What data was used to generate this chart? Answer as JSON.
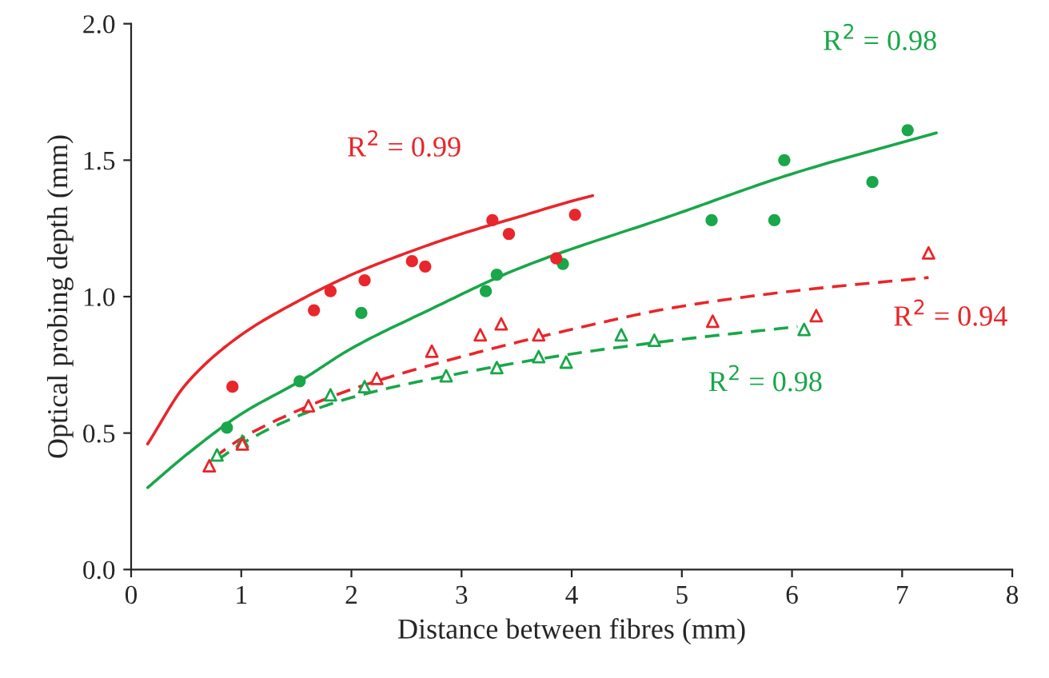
{
  "chart_data": {
    "type": "scatter",
    "xlabel": "Distance between fibres (mm)",
    "ylabel": "Optical probing depth (mm)",
    "xlim": [
      0,
      8
    ],
    "xticks": [
      0,
      1,
      2,
      3,
      4,
      5,
      6,
      7,
      8
    ],
    "ylim": [
      0,
      2.0
    ],
    "yticks": [
      {
        "value": 0,
        "label": "0.0"
      },
      {
        "value": 0.5,
        "label": "0.5"
      },
      {
        "value": 1.0,
        "label": "1.0"
      },
      {
        "value": 1.5,
        "label": "1.5"
      },
      {
        "value": 2.0,
        "label": "2.0"
      }
    ],
    "grid": false,
    "legend": false,
    "series": [
      {
        "marker": "circle",
        "color": "#e8262b",
        "x": [
          0.92,
          1.66,
          1.81,
          2.12,
          2.55,
          2.67,
          3.28,
          3.43,
          3.86,
          4.03
        ],
        "values": [
          0.67,
          0.95,
          1.02,
          1.06,
          1.13,
          1.11,
          1.28,
          1.23,
          1.14,
          1.3
        ]
      },
      {
        "marker": "circle",
        "color": "#1aa64a",
        "x": [
          0.87,
          1.53,
          2.09,
          3.22,
          3.32,
          3.92,
          5.27,
          5.84,
          5.93,
          6.73,
          7.05
        ],
        "values": [
          0.52,
          0.69,
          0.94,
          1.02,
          1.08,
          1.12,
          1.28,
          1.28,
          1.5,
          1.42,
          1.61
        ]
      },
      {
        "marker": "triangle",
        "color": "#e8262b",
        "x": [
          0.71,
          1.01,
          1.61,
          2.23,
          2.73,
          3.17,
          3.36,
          3.7,
          5.28,
          6.22,
          7.24
        ],
        "values": [
          0.38,
          0.46,
          0.6,
          0.7,
          0.8,
          0.86,
          0.9,
          0.86,
          0.91,
          0.93,
          1.16
        ]
      },
      {
        "marker": "triangle",
        "color": "#1aa64a",
        "x": [
          0.78,
          1.01,
          1.81,
          2.12,
          2.86,
          3.32,
          3.7,
          3.95,
          4.45,
          4.75,
          6.11
        ],
        "values": [
          0.42,
          0.47,
          0.64,
          0.67,
          0.71,
          0.74,
          0.78,
          0.76,
          0.86,
          0.84,
          0.88
        ]
      },
      {
        "type": "line",
        "line_style": "solid",
        "color": "#e8262b",
        "x": [
          0.15,
          0.5,
          1,
          1.5,
          2,
          2.5,
          3,
          3.5,
          4,
          4.19
        ],
        "values": [
          0.46,
          0.68,
          0.86,
          0.98,
          1.08,
          1.16,
          1.23,
          1.29,
          1.35,
          1.37
        ]
      },
      {
        "type": "line",
        "line_style": "solid",
        "color": "#1aa64a",
        "x": [
          0.15,
          0.5,
          1,
          1.53,
          2,
          2.7,
          3.5,
          4.93,
          6,
          7.31
        ],
        "values": [
          0.3,
          0.42,
          0.57,
          0.69,
          0.81,
          0.95,
          1.1,
          1.3,
          1.45,
          1.6
        ]
      },
      {
        "type": "line",
        "line_style": "dashed",
        "color": "#e8262b",
        "x": [
          0.75,
          1,
          1.5,
          2,
          3,
          4,
          4.93,
          6,
          7.24
        ],
        "values": [
          0.41,
          0.48,
          0.58,
          0.66,
          0.78,
          0.88,
          0.96,
          1.02,
          1.07
        ]
      },
      {
        "type": "line",
        "line_style": "dashed",
        "color": "#1aa64a",
        "x": [
          0.78,
          1,
          1.5,
          2,
          3,
          4,
          4.93,
          6.05
        ],
        "values": [
          0.4,
          0.46,
          0.56,
          0.63,
          0.72,
          0.79,
          0.84,
          0.89
        ]
      }
    ],
    "annotations": [
      "R$^{2}$ = 0.99",
      "R$^{2}$ = 0.98",
      "R$^{2}$ = 0.94",
      "R$^{2}$ = 0.98"
    ]
  }
}
